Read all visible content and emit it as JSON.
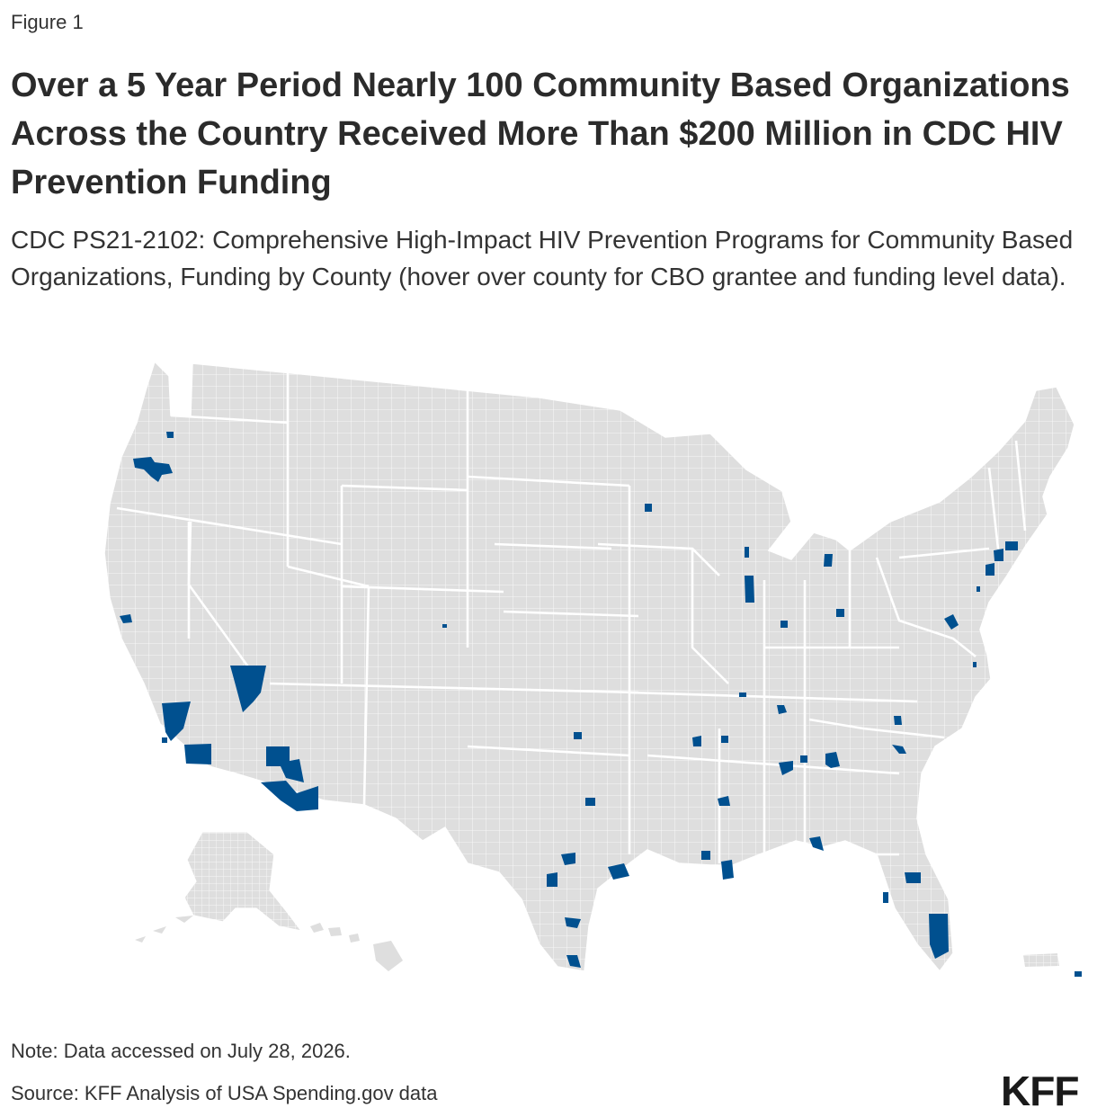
{
  "figure_label": "Figure 1",
  "title": "Over a 5 Year Period Nearly 100 Community Based Organizations Across the Country Received More Than $200 Million in CDC HIV Prevention Funding",
  "subtitle": "CDC PS21-2102: Comprehensive High-Impact HIV Prevention Programs for Community Based Organizations, Funding by County (hover over county for CBO grantee and funding level data).",
  "map": {
    "type": "choropleth",
    "geography": "U.S. counties",
    "colors": {
      "funded": "#00508f",
      "not_funded": "#dedede",
      "borders": "#ffffff"
    }
  },
  "note": "Note: Data accessed on July 28, 2026.",
  "source": "Source: KFF Analysis of USA Spending.gov data",
  "logo": "KFF"
}
